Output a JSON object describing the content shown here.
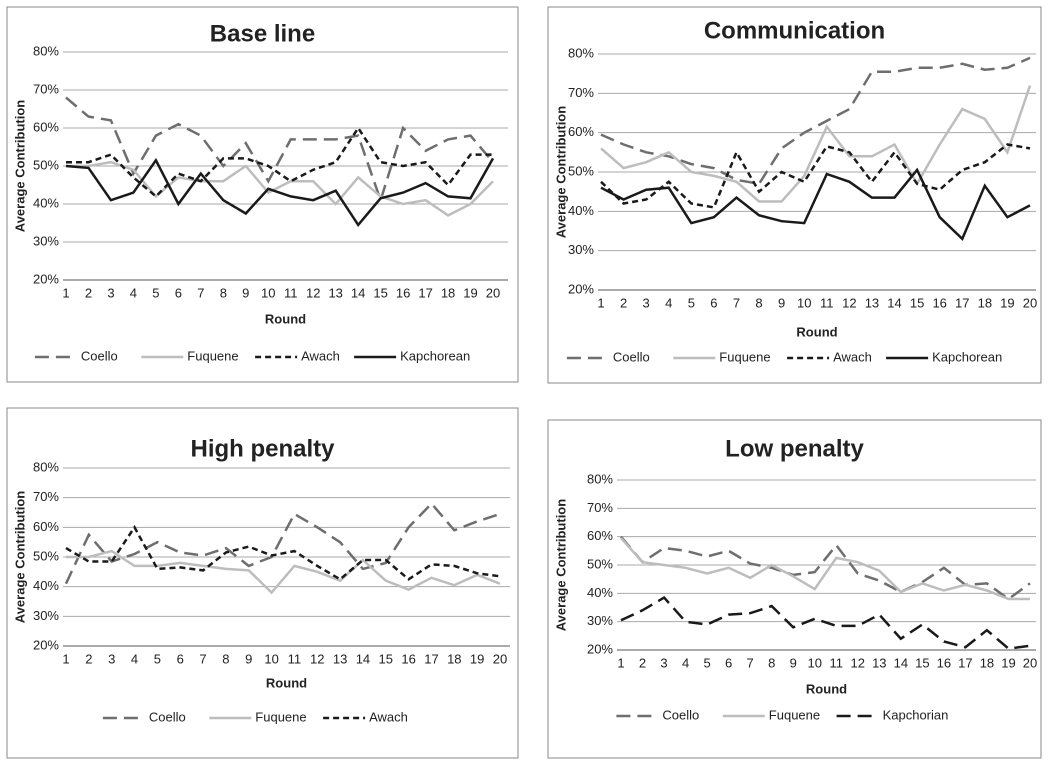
{
  "chart_data": [
    {
      "type": "line",
      "title": "Base line",
      "y_label": "Average Contribution",
      "x_label": "Round",
      "categories": [
        "1",
        "2",
        "3",
        "4",
        "5",
        "6",
        "7",
        "8",
        "9",
        "10",
        "11",
        "12",
        "13",
        "14",
        "15",
        "16",
        "17",
        "18",
        "19",
        "20"
      ],
      "ylim": [
        20,
        80
      ],
      "yticks": [
        {
          "value": 20,
          "label": "20%"
        },
        {
          "value": 30,
          "label": "30%"
        },
        {
          "value": 40,
          "label": "40%"
        },
        {
          "value": 50,
          "label": "50%"
        },
        {
          "value": 60,
          "label": "60%"
        },
        {
          "value": 70,
          "label": "70%"
        },
        {
          "value": 80,
          "label": "80%"
        }
      ],
      "grid": true,
      "legend": "bottom",
      "series": [
        {
          "name": "Coello",
          "color": "#6e6e6e",
          "dash": "long",
          "values": [
            68,
            63,
            62,
            48,
            58,
            61,
            58,
            50,
            56,
            46,
            57,
            57,
            57,
            58,
            41,
            60,
            54,
            57,
            58,
            51
          ]
        },
        {
          "name": "Fuquene",
          "color": "#bdbdbd",
          "dash": "solid",
          "values": [
            50,
            50,
            51,
            49,
            42,
            47,
            46,
            46,
            50,
            43,
            46,
            46,
            40,
            47,
            42,
            40,
            41,
            37,
            40,
            46
          ]
        },
        {
          "name": "Awach",
          "color": "#1a1a1a",
          "dash": "short",
          "values": [
            51,
            51,
            53,
            47,
            42,
            48,
            46,
            52,
            52,
            50,
            46,
            49,
            51,
            60,
            51,
            50,
            51,
            45,
            53,
            53
          ]
        },
        {
          "name": "Kapchorean",
          "color": "#1a1a1a",
          "dash": "solid",
          "values": [
            50,
            49.5,
            41,
            43,
            51.5,
            40,
            48,
            41,
            37.5,
            44,
            42,
            41,
            43.5,
            34.5,
            41.5,
            43,
            45.5,
            42,
            41.5,
            52
          ]
        }
      ]
    },
    {
      "type": "line",
      "title": "Communication",
      "y_label": "Average Contribution",
      "x_label": "Round",
      "categories": [
        "1",
        "2",
        "3",
        "4",
        "5",
        "6",
        "7",
        "8",
        "9",
        "10",
        "11",
        "12",
        "13",
        "14",
        "15",
        "16",
        "17",
        "18",
        "19",
        "20"
      ],
      "ylim": [
        20,
        80
      ],
      "yticks": [
        {
          "value": 20,
          "label": "20%"
        },
        {
          "value": 30,
          "label": "30%"
        },
        {
          "value": 40,
          "label": "40%"
        },
        {
          "value": 50,
          "label": "50%"
        },
        {
          "value": 60,
          "label": "60%"
        },
        {
          "value": 70,
          "label": "70%"
        },
        {
          "value": 80,
          "label": "80%"
        }
      ],
      "grid": true,
      "legend": "bottom",
      "series": [
        {
          "name": "Coello",
          "color": "#6e6e6e",
          "dash": "long",
          "values": [
            59.5,
            57,
            55,
            54,
            52,
            51,
            48,
            47,
            56,
            60,
            63,
            66,
            75.5,
            75.5,
            76.5,
            76.5,
            77.5,
            76,
            76.5,
            79
          ]
        },
        {
          "name": "Fuquene",
          "color": "#bdbdbd",
          "dash": "solid",
          "values": [
            56,
            51,
            52.5,
            55,
            50,
            49,
            47.5,
            42.5,
            42.5,
            49,
            61.5,
            54,
            54,
            57,
            47,
            57,
            66,
            63.5,
            55,
            72
          ]
        },
        {
          "name": "Awach",
          "color": "#1a1a1a",
          "dash": "short",
          "values": [
            47.5,
            42,
            43,
            47.5,
            42,
            41,
            55,
            45,
            50,
            47.5,
            56.5,
            55,
            47.5,
            55,
            47,
            45.5,
            50.5,
            52.5,
            57,
            56
          ]
        },
        {
          "name": "Kapchorean",
          "color": "#1a1a1a",
          "dash": "solid",
          "values": [
            46,
            43,
            45.5,
            46,
            37,
            38.5,
            43.5,
            39,
            37.5,
            37,
            49.5,
            47.5,
            43.5,
            43.5,
            50.5,
            38.5,
            33,
            46.5,
            38.5,
            41.5
          ]
        }
      ]
    },
    {
      "type": "line",
      "title": "High penalty",
      "y_label": "Average Contribution",
      "x_label": "Round",
      "categories": [
        "1",
        "2",
        "3",
        "4",
        "5",
        "6",
        "7",
        "8",
        "9",
        "10",
        "11",
        "12",
        "13",
        "14",
        "15",
        "16",
        "17",
        "18",
        "19",
        "20"
      ],
      "ylim": [
        20,
        80
      ],
      "yticks": [
        {
          "value": 20,
          "label": "20%"
        },
        {
          "value": 30,
          "label": "30%"
        },
        {
          "value": 40,
          "label": "40%"
        },
        {
          "value": 50,
          "label": "50%"
        },
        {
          "value": 60,
          "label": "60%"
        },
        {
          "value": 70,
          "label": "70%"
        },
        {
          "value": 80,
          "label": "80%"
        }
      ],
      "grid": true,
      "legend": "bottom",
      "series": [
        {
          "name": "Coello",
          "color": "#6e6e6e",
          "dash": "long",
          "values": [
            41,
            57.5,
            48.5,
            51,
            55,
            51.5,
            50.5,
            53,
            47,
            50,
            64.5,
            60,
            55,
            46,
            48,
            60,
            68,
            59,
            62,
            64.5
          ]
        },
        {
          "name": "Fuquene",
          "color": "#bdbdbd",
          "dash": "solid",
          "values": [
            50,
            50,
            52,
            47,
            47,
            48,
            47,
            46,
            45.5,
            38,
            47,
            45,
            42,
            49,
            42,
            39,
            43,
            40.5,
            44,
            41
          ]
        },
        {
          "name": "Awach",
          "color": "#1a1a1a",
          "dash": "short",
          "values": [
            53,
            48.5,
            48.5,
            60,
            46,
            46.5,
            45.5,
            51.5,
            53.5,
            50.5,
            52,
            47,
            42.5,
            49,
            49,
            42.5,
            47.5,
            47,
            44.5,
            43.5
          ]
        }
      ]
    },
    {
      "type": "line",
      "title": "Low penalty",
      "y_label": "Average Contribution",
      "x_label": "Round",
      "categories": [
        "1",
        "2",
        "3",
        "4",
        "5",
        "6",
        "7",
        "8",
        "9",
        "10",
        "11",
        "12",
        "13",
        "14",
        "15",
        "16",
        "17",
        "18",
        "19",
        "20"
      ],
      "ylim": [
        20,
        80
      ],
      "yticks": [
        {
          "value": 20,
          "label": "20%"
        },
        {
          "value": 30,
          "label": "30%"
        },
        {
          "value": 40,
          "label": "40%"
        },
        {
          "value": 50,
          "label": "50%"
        },
        {
          "value": 60,
          "label": "60%"
        },
        {
          "value": 70,
          "label": "70%"
        },
        {
          "value": 80,
          "label": "80%"
        }
      ],
      "grid": true,
      "legend": "bottom",
      "series": [
        {
          "name": "Coello",
          "color": "#6e6e6e",
          "dash": "long",
          "values": [
            60,
            51,
            56,
            55,
            53,
            55,
            50.5,
            49,
            46.5,
            47.5,
            57,
            47,
            44.5,
            40.5,
            44,
            49,
            43,
            43.5,
            38,
            43.5
          ]
        },
        {
          "name": "Fuquene",
          "color": "#bdbdbd",
          "dash": "solid",
          "values": [
            59.5,
            51,
            50,
            49,
            47,
            49,
            45.5,
            50,
            46,
            41.5,
            52.5,
            51,
            48,
            40.5,
            43.5,
            41,
            43,
            41,
            38,
            38
          ]
        },
        {
          "name": "Kapchorian",
          "color": "#1a1a1a",
          "dash": "long",
          "values": [
            30.5,
            34,
            38.5,
            30,
            29,
            32.5,
            33,
            35.5,
            28,
            31,
            28.5,
            28.5,
            32.5,
            24,
            29,
            23,
            21,
            27,
            20.5,
            21.5
          ]
        }
      ]
    }
  ]
}
